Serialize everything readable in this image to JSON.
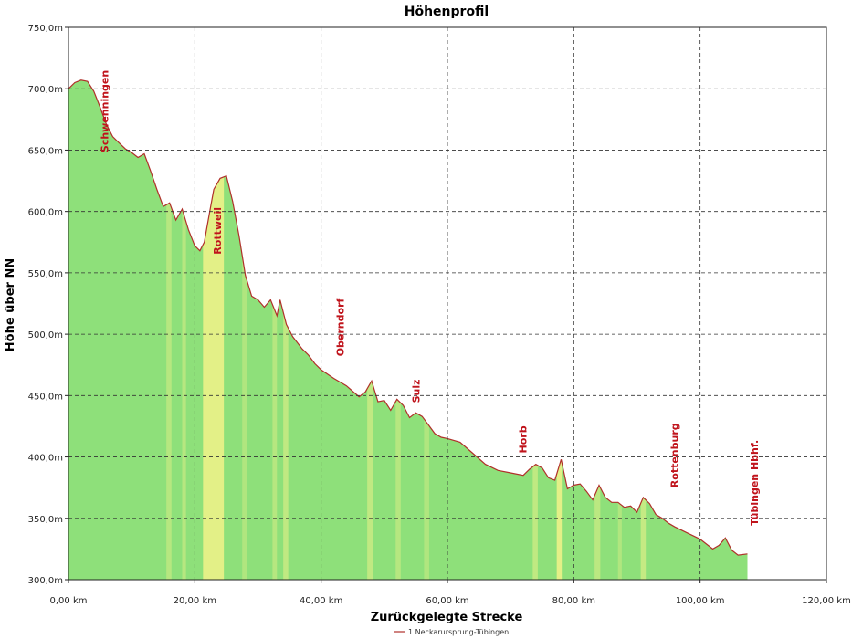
{
  "chart_data": {
    "type": "area",
    "title": "Höhenprofil",
    "xlabel": "Zurückgelegte Strecke",
    "ylabel": "Höhe über NN",
    "xlim": [
      0,
      120
    ],
    "ylim": [
      300,
      750
    ],
    "x_ticks": [
      0,
      20,
      40,
      60,
      80,
      100,
      120
    ],
    "x_tick_labels": [
      "0,00 km",
      "20,00 km",
      "40,00 km",
      "60,00 km",
      "80,00 km",
      "100,00 km",
      "120,00 km"
    ],
    "y_ticks": [
      300,
      350,
      400,
      450,
      500,
      550,
      600,
      650,
      700,
      750
    ],
    "y_tick_labels": [
      "300,0m",
      "350,0m",
      "400,0m",
      "450,0m",
      "500,0m",
      "550,0m",
      "600,0m",
      "650,0m",
      "700,0m",
      "750,0m"
    ],
    "grid": true,
    "legend_position": "bottom-center",
    "colors": {
      "fill": "#8ee07a",
      "line": "#b0302a",
      "highlight": "#f2f28a",
      "label": "#c0141c"
    },
    "series": [
      {
        "name": "1 Neckarursprung-Tübingen",
        "x": [
          0,
          1,
          2,
          3,
          4,
          5,
          6,
          7,
          8,
          9,
          10,
          11,
          12,
          13,
          14,
          15,
          16,
          17,
          18,
          19,
          20,
          20.8,
          21.5,
          22.3,
          23,
          24,
          25,
          26,
          27,
          28,
          29,
          30,
          31,
          32,
          33,
          33.5,
          34.5,
          35.5,
          37,
          38,
          39,
          40,
          42,
          44,
          46,
          47,
          48,
          49,
          50,
          51,
          52,
          53,
          54,
          55,
          56,
          57,
          58,
          59,
          60,
          62,
          64,
          66,
          68,
          70,
          72,
          73,
          74,
          75,
          76,
          77,
          78,
          79,
          80,
          81,
          82,
          83,
          84,
          85,
          86,
          87,
          88,
          89,
          90,
          91,
          92,
          93,
          94,
          95,
          96,
          98,
          100,
          102,
          103,
          104,
          105,
          106,
          107.5
        ],
        "y": [
          700,
          705,
          707,
          706,
          698,
          685,
          671,
          661,
          656,
          651,
          648,
          644,
          647,
          633,
          618,
          604,
          607,
          593,
          602,
          585,
          572,
          568,
          575,
          598,
          618,
          627,
          629,
          608,
          580,
          548,
          531,
          528,
          522,
          528,
          515,
          528,
          508,
          498,
          488,
          483,
          476,
          471,
          464,
          458,
          449,
          453,
          462,
          445,
          446,
          438,
          447,
          442,
          432,
          436,
          433,
          426,
          419,
          416,
          415,
          412,
          403,
          394,
          389,
          387,
          385,
          390,
          394,
          391,
          383,
          381,
          398,
          374,
          377,
          378,
          372,
          365,
          377,
          367,
          363,
          363,
          359,
          360,
          355,
          367,
          362,
          353,
          350,
          346,
          343,
          338,
          333,
          325,
          328,
          334,
          324,
          320,
          321
        ]
      }
    ],
    "highlight_bands": [
      {
        "x_start": 15.5,
        "x_end": 16.3,
        "strength": 0.4
      },
      {
        "x_start": 18,
        "x_end": 18.6,
        "strength": 0.4
      },
      {
        "x_start": 21.3,
        "x_end": 24.6,
        "strength": 0.85
      },
      {
        "x_start": 27.5,
        "x_end": 28.2,
        "strength": 0.35
      },
      {
        "x_start": 32.3,
        "x_end": 33,
        "strength": 0.4
      },
      {
        "x_start": 34,
        "x_end": 34.8,
        "strength": 0.5
      },
      {
        "x_start": 47.3,
        "x_end": 48.2,
        "strength": 0.5
      },
      {
        "x_start": 51.8,
        "x_end": 52.6,
        "strength": 0.4
      },
      {
        "x_start": 56.3,
        "x_end": 57.1,
        "strength": 0.35
      },
      {
        "x_start": 73.5,
        "x_end": 74.3,
        "strength": 0.5
      },
      {
        "x_start": 77.3,
        "x_end": 78.1,
        "strength": 0.85
      },
      {
        "x_start": 83.3,
        "x_end": 84.2,
        "strength": 0.45
      },
      {
        "x_start": 87,
        "x_end": 87.6,
        "strength": 0.35
      },
      {
        "x_start": 90.6,
        "x_end": 91.4,
        "strength": 0.55
      }
    ],
    "annotations": [
      {
        "text": "Schwenningen",
        "x": 5.7,
        "y": 648
      },
      {
        "text": "Rottweil",
        "x": 23.6,
        "y": 565
      },
      {
        "text": "Oberndorf",
        "x": 43,
        "y": 482
      },
      {
        "text": "Sulz",
        "x": 55,
        "y": 444
      },
      {
        "text": "Horb",
        "x": 71.9,
        "y": 403
      },
      {
        "text": "Rottenburg",
        "x": 95.9,
        "y": 375
      },
      {
        "text": "Tübingen Hbhf.",
        "x": 108.6,
        "y": 344
      }
    ]
  }
}
